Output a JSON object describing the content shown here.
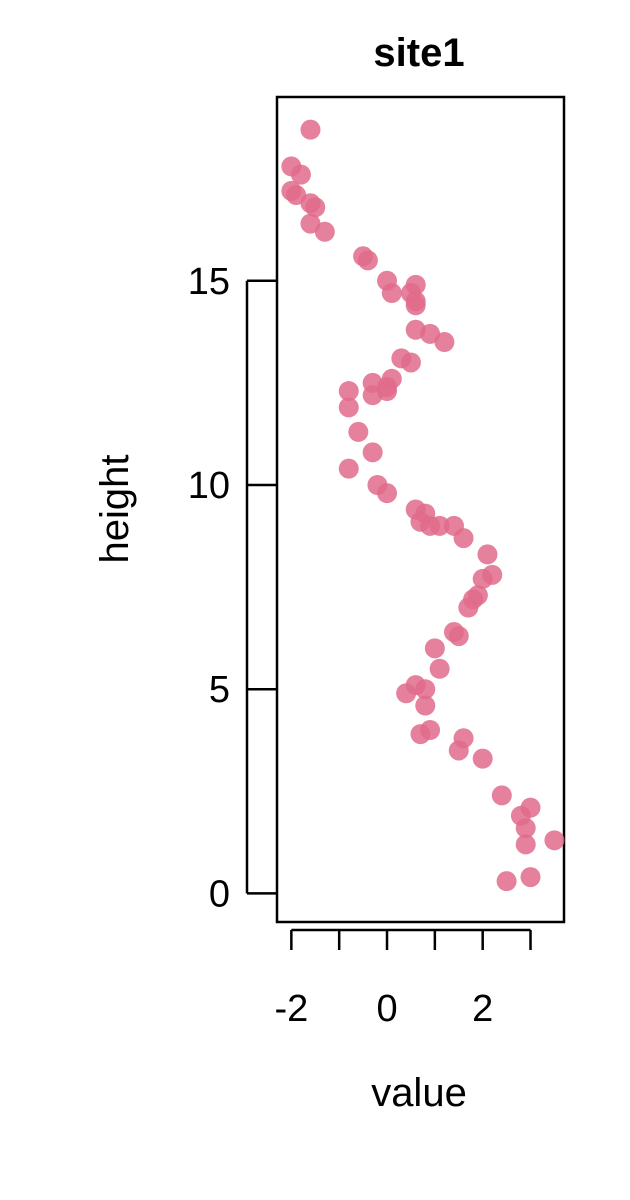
{
  "chart_data": {
    "type": "scatter",
    "title": "site1",
    "xlabel": "value",
    "ylabel": "height",
    "xlim": [
      -2.3,
      3.7
    ],
    "ylim": [
      -0.7,
      19.5
    ],
    "xticks": [
      -2,
      -1,
      0,
      1,
      2,
      3
    ],
    "xtick_labels": [
      "-2",
      "0",
      "2"
    ],
    "xtick_label_values": [
      -2,
      0,
      2
    ],
    "yticks": [
      0,
      5,
      10,
      15
    ],
    "ytick_labels": [
      "0",
      "5",
      "10",
      "15"
    ],
    "grid": false,
    "point_color": "#e06b8b",
    "points": [
      {
        "x": -1.6,
        "y": 18.7
      },
      {
        "x": -2.0,
        "y": 17.8
      },
      {
        "x": -1.8,
        "y": 17.6
      },
      {
        "x": -2.0,
        "y": 17.2
      },
      {
        "x": -1.9,
        "y": 17.1
      },
      {
        "x": -1.6,
        "y": 16.9
      },
      {
        "x": -1.5,
        "y": 16.8
      },
      {
        "x": -1.6,
        "y": 16.4
      },
      {
        "x": -1.3,
        "y": 16.2
      },
      {
        "x": -0.5,
        "y": 15.6
      },
      {
        "x": -0.4,
        "y": 15.5
      },
      {
        "x": 0.0,
        "y": 15.0
      },
      {
        "x": 0.6,
        "y": 14.9
      },
      {
        "x": 0.1,
        "y": 14.7
      },
      {
        "x": 0.5,
        "y": 14.7
      },
      {
        "x": 0.6,
        "y": 14.5
      },
      {
        "x": 0.6,
        "y": 14.4
      },
      {
        "x": 0.6,
        "y": 13.8
      },
      {
        "x": 0.9,
        "y": 13.7
      },
      {
        "x": 1.2,
        "y": 13.5
      },
      {
        "x": 0.3,
        "y": 13.1
      },
      {
        "x": 0.5,
        "y": 13.0
      },
      {
        "x": 0.1,
        "y": 12.6
      },
      {
        "x": 0.0,
        "y": 12.4
      },
      {
        "x": -0.3,
        "y": 12.5
      },
      {
        "x": -0.8,
        "y": 12.3
      },
      {
        "x": -0.3,
        "y": 12.2
      },
      {
        "x": 0.0,
        "y": 12.3
      },
      {
        "x": -0.8,
        "y": 11.9
      },
      {
        "x": -0.6,
        "y": 11.3
      },
      {
        "x": -0.3,
        "y": 10.8
      },
      {
        "x": -0.8,
        "y": 10.4
      },
      {
        "x": -0.2,
        "y": 10.0
      },
      {
        "x": 0.0,
        "y": 9.8
      },
      {
        "x": 0.6,
        "y": 9.4
      },
      {
        "x": 0.8,
        "y": 9.3
      },
      {
        "x": 0.7,
        "y": 9.1
      },
      {
        "x": 0.9,
        "y": 9.0
      },
      {
        "x": 1.1,
        "y": 9.0
      },
      {
        "x": 1.4,
        "y": 9.0
      },
      {
        "x": 1.6,
        "y": 8.7
      },
      {
        "x": 2.1,
        "y": 8.3
      },
      {
        "x": 2.2,
        "y": 7.8
      },
      {
        "x": 2.0,
        "y": 7.7
      },
      {
        "x": 1.9,
        "y": 7.3
      },
      {
        "x": 1.8,
        "y": 7.2
      },
      {
        "x": 1.7,
        "y": 7.0
      },
      {
        "x": 1.4,
        "y": 6.4
      },
      {
        "x": 1.5,
        "y": 6.3
      },
      {
        "x": 1.0,
        "y": 6.0
      },
      {
        "x": 1.1,
        "y": 5.5
      },
      {
        "x": 0.6,
        "y": 5.1
      },
      {
        "x": 0.8,
        "y": 5.0
      },
      {
        "x": 0.4,
        "y": 4.9
      },
      {
        "x": 0.8,
        "y": 4.6
      },
      {
        "x": 0.9,
        "y": 4.0
      },
      {
        "x": 0.7,
        "y": 3.9
      },
      {
        "x": 1.6,
        "y": 3.8
      },
      {
        "x": 1.5,
        "y": 3.5
      },
      {
        "x": 2.0,
        "y": 3.3
      },
      {
        "x": 2.4,
        "y": 2.4
      },
      {
        "x": 3.0,
        "y": 2.1
      },
      {
        "x": 2.8,
        "y": 1.9
      },
      {
        "x": 2.9,
        "y": 1.6
      },
      {
        "x": 3.5,
        "y": 1.3
      },
      {
        "x": 2.9,
        "y": 1.2
      },
      {
        "x": 3.0,
        "y": 0.4
      },
      {
        "x": 2.5,
        "y": 0.3
      }
    ]
  }
}
